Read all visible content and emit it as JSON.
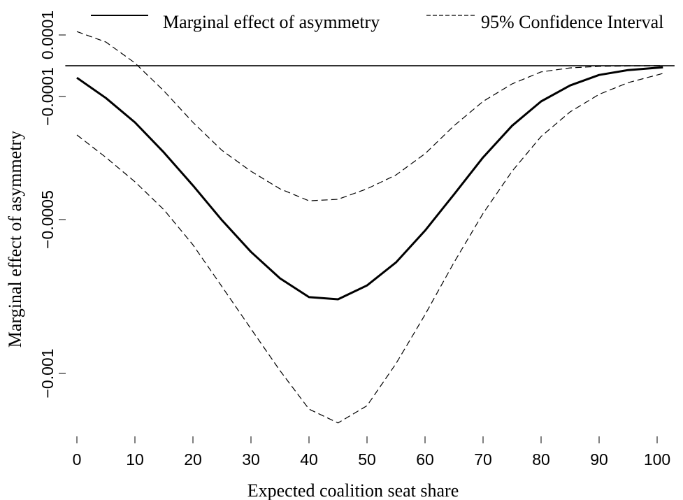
{
  "chart_data": {
    "type": "line",
    "xlabel": "Expected coalition seat share",
    "ylabel": "Marginal effect of asymmetry",
    "x": [
      0,
      5,
      10,
      15,
      20,
      25,
      30,
      35,
      40,
      45,
      50,
      55,
      60,
      65,
      70,
      75,
      80,
      85,
      90,
      95,
      101
    ],
    "series": [
      {
        "name": "Marginal effect of asymmetry",
        "color": "#000000",
        "style": "solid",
        "values": [
          -3.9e-05,
          -0.000105,
          -0.000184,
          -0.000282,
          -0.000389,
          -0.000502,
          -0.000605,
          -0.000691,
          -0.000752,
          -0.000759,
          -0.000714,
          -0.000639,
          -0.000536,
          -0.000418,
          -0.000298,
          -0.000195,
          -0.000116,
          -6.4e-05,
          -3e-05,
          -1.4e-05,
          -5e-06
        ]
      },
      {
        "name": "95% Confidence Interval",
        "color": "#000000",
        "style": "dashed",
        "values": [
          0.000111,
          7.7e-05,
          9e-06,
          -8.2e-05,
          -0.000184,
          -0.000275,
          -0.000343,
          -0.0004,
          -0.000439,
          -0.000434,
          -0.0004,
          -0.000355,
          -0.000286,
          -0.000195,
          -0.000116,
          -5.9e-05,
          -2e-05,
          -7e-06,
          -2e-06,
          -1e-06,
          0
        ]
      },
      {
        "name": "95% Confidence Interval",
        "color": "#000000",
        "style": "dashed",
        "values": [
          -0.000225,
          -0.000298,
          -0.000377,
          -0.000468,
          -0.000582,
          -0.000718,
          -0.000855,
          -0.000991,
          -0.001116,
          -0.001161,
          -0.001105,
          -0.000968,
          -0.000809,
          -0.000639,
          -0.00048,
          -0.000343,
          -0.00023,
          -0.00015,
          -9.3e-05,
          -5.5e-05,
          -2.5e-05
        ]
      }
    ],
    "reference_line": 0,
    "xlim": [
      -2,
      103
    ],
    "xticks": [
      0,
      10,
      20,
      30,
      40,
      50,
      60,
      70,
      80,
      90,
      100
    ],
    "ylim": [
      -0.0012,
      0.00019
    ],
    "yticks": [
      {
        "value": -0.001,
        "label": "−0.001"
      },
      {
        "value": -0.0005,
        "label": "−0.0005"
      },
      {
        "value": -0.0001,
        "label": "−0.0001"
      },
      0.0001
    ],
    "legend": "top"
  }
}
